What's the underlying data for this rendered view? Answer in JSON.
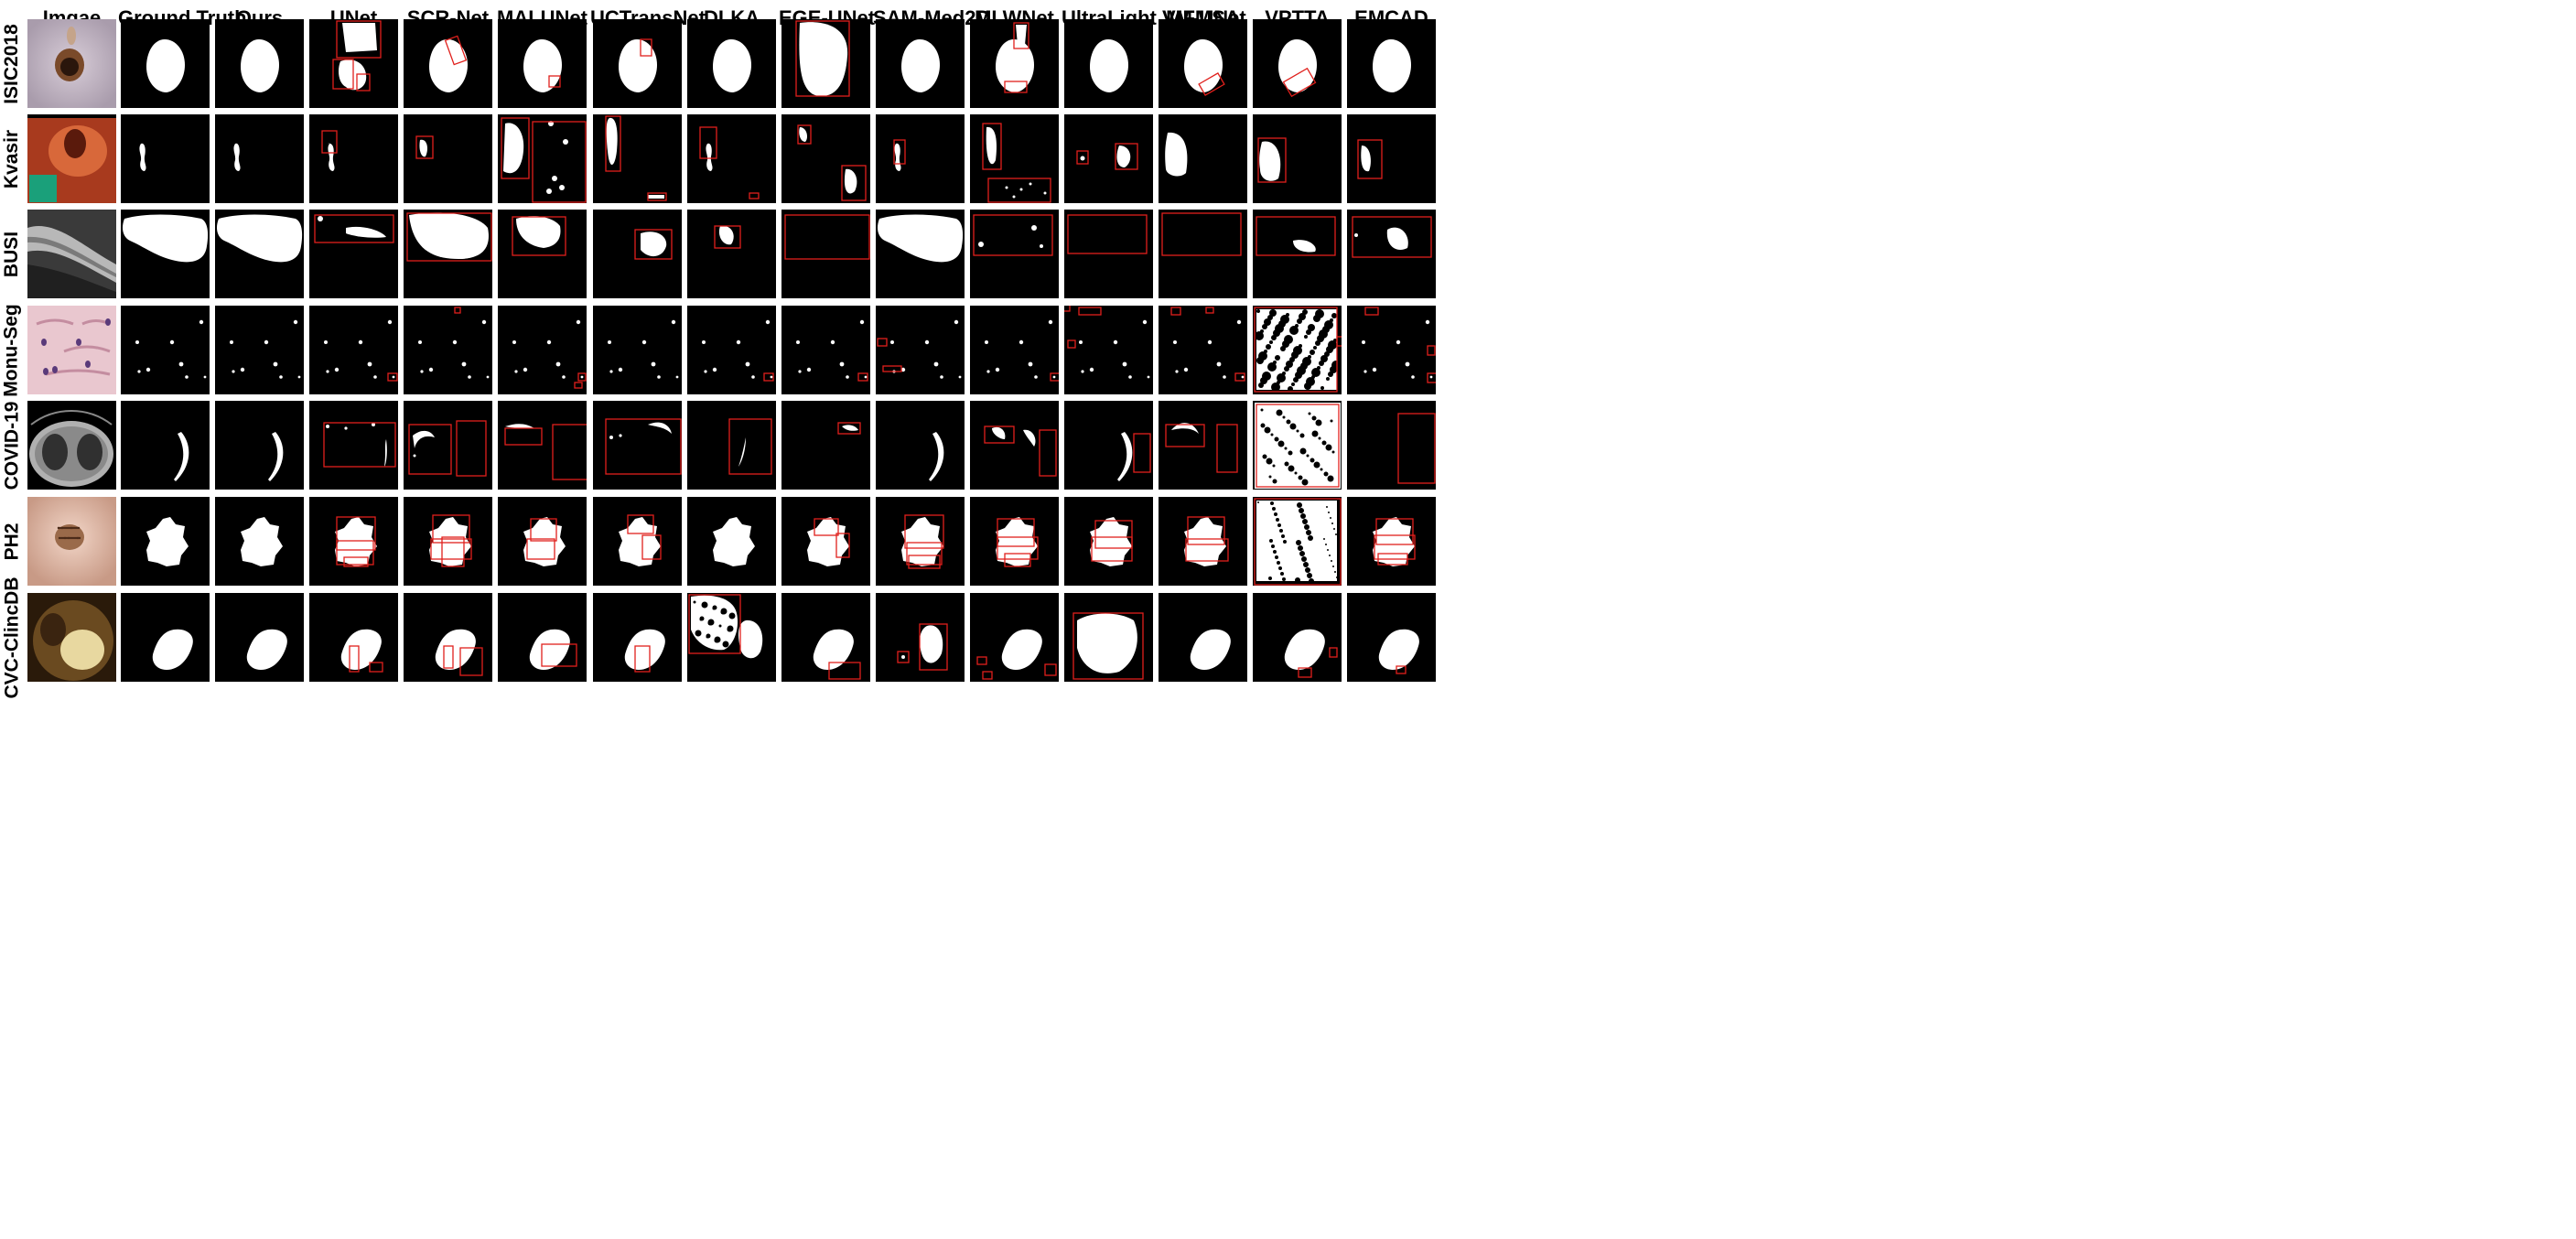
{
  "columns": [
    "Imgae",
    "Ground Truth",
    "Ours",
    "UNet",
    "SCR-Net",
    "MALUNet",
    "UCTransNet",
    "DLKA",
    "EGE-UNet",
    "SAM-Med2D",
    "MLWNet",
    "UltraLight VM-UNet",
    "MFMSA",
    "VPTTA",
    "EMCAD"
  ],
  "rows": [
    "ISIC2018",
    "Kvasir",
    "BUSI",
    "Monu-Seg",
    "COVID-19",
    "PH2",
    "CVC-ClincDB"
  ],
  "colors": {
    "mask": "#ffffff",
    "background": "#000000",
    "error_box": "#e0201c"
  }
}
